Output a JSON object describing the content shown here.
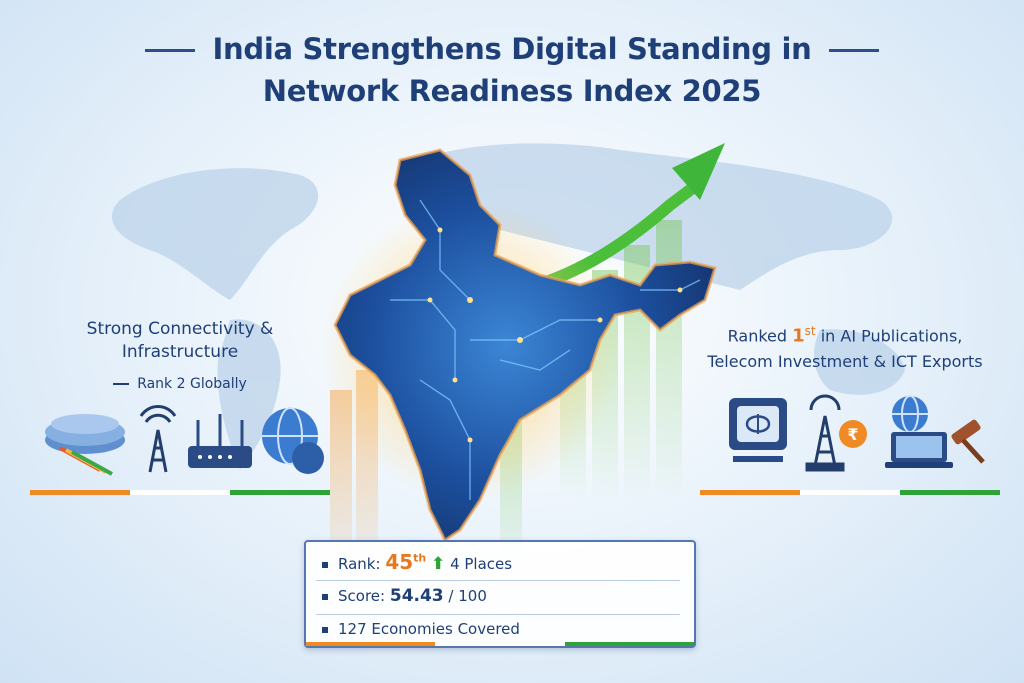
{
  "title": {
    "line1": "India Strengthens Digital Standing in",
    "line2": "Network Readiness Index 2025"
  },
  "left_panel": {
    "heading_line1": "Strong Connectivity &",
    "heading_line2": "Infrastructure",
    "subtext": "Rank 2 Globally",
    "icons": [
      "cable-icon",
      "signal-tower-icon",
      "wifi-router-icon",
      "globe-icon"
    ]
  },
  "right_panel": {
    "heading_prefix": "Ranked",
    "heading_rank": "1",
    "heading_rank_suffix": "st",
    "heading_line1_rest": "in AI Publications,",
    "heading_line2": "Telecom Investment & ICT Exports",
    "icons": [
      "ai-chip-icon",
      "telecom-tower-icon",
      "rupee-icon",
      "globe-icon",
      "laptop-icon",
      "gavel-icon"
    ]
  },
  "stats": {
    "rank_label": "Rank:",
    "rank_value": "45",
    "rank_suffix": "th",
    "rank_change": "4 Places",
    "score_label": "Score:",
    "score_value": "54.43",
    "score_max": "/ 100",
    "economies": "127 Economies Covered"
  },
  "colors": {
    "saffron": "#f08a24",
    "green": "#2fa33a",
    "navy": "#1f3f78",
    "map_blue": "#1f4fa0"
  }
}
